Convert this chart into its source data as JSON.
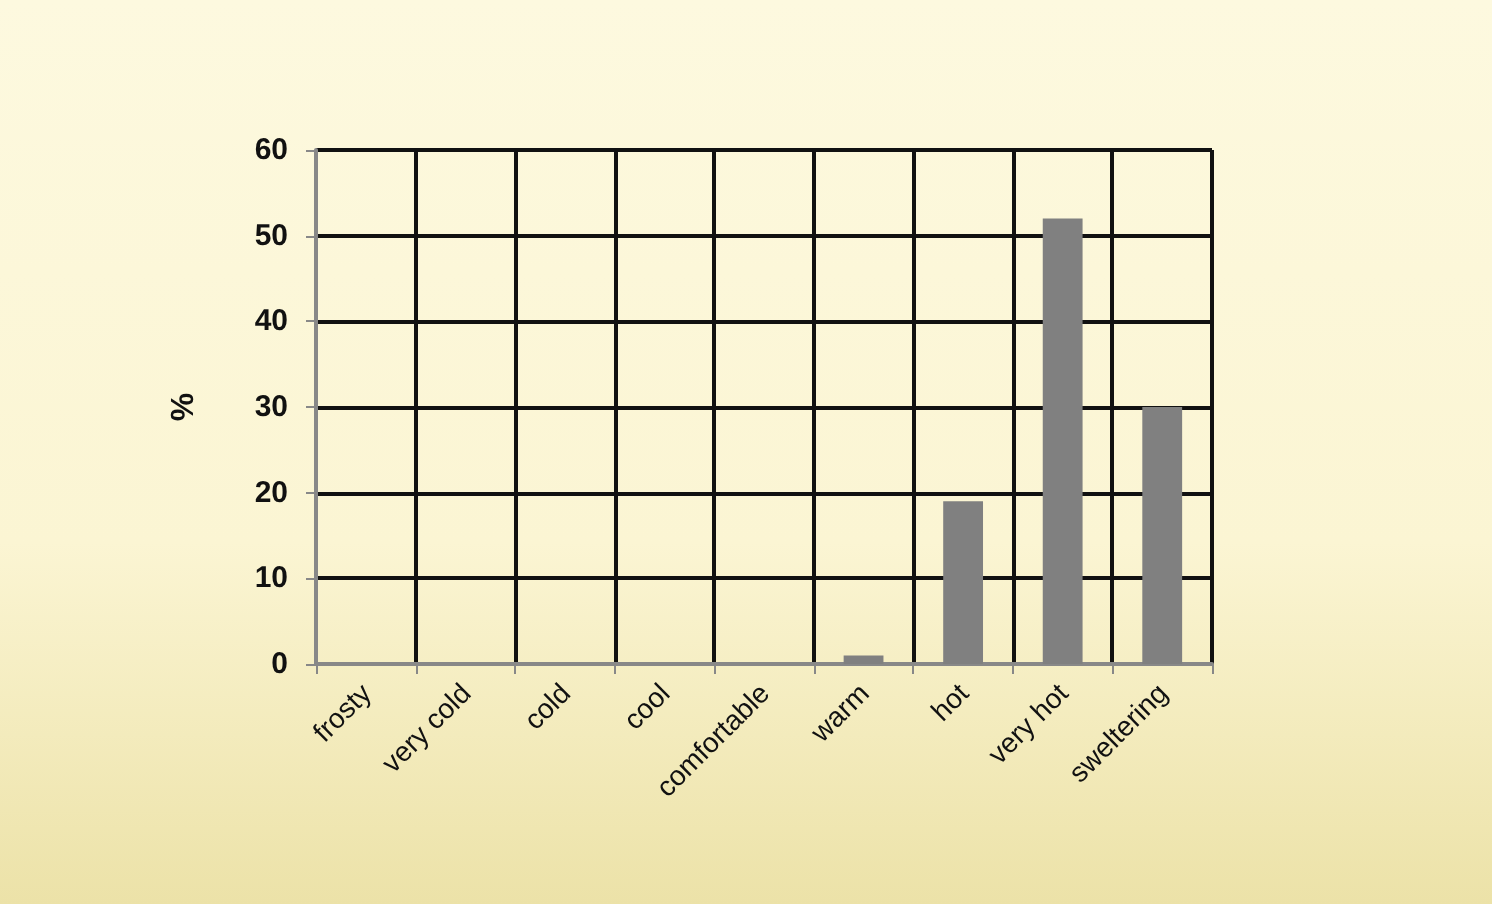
{
  "chart_data": {
    "type": "bar",
    "categories": [
      "frosty",
      "very cold",
      "cold",
      "cool",
      "comfortable",
      "warm",
      "hot",
      "very hot",
      "sweltering"
    ],
    "values": [
      0,
      0,
      0,
      0,
      0,
      1,
      19,
      52,
      30
    ],
    "color": "#808080",
    "ylabel": "%",
    "ylim": [
      0,
      60
    ],
    "yticks": [
      0,
      10,
      20,
      30,
      40,
      50,
      60
    ],
    "grid": true
  }
}
